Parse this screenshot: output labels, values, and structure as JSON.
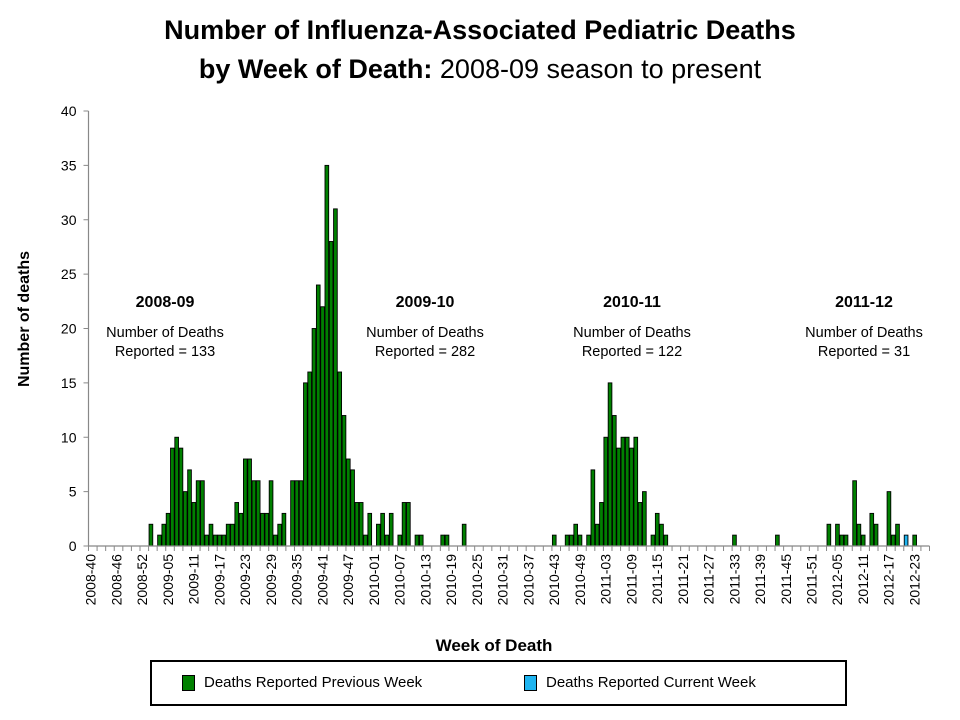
{
  "title": {
    "line1": "Number of Influenza-Associated Pediatric Deaths",
    "line2_bold": "by Week of Death:",
    "line2_rest": " 2008-09 season to present"
  },
  "annotations": [
    {
      "season": "2008-09",
      "line1": "Number of Deaths",
      "line2": "Reported = 133"
    },
    {
      "season": "2009-10",
      "line1": "Number of Deaths",
      "line2": "Reported = 282"
    },
    {
      "season": "2010-11",
      "line1": "Number of Deaths",
      "line2": "Reported = 122"
    },
    {
      "season": "2011-12",
      "line1": "Number of Deaths",
      "line2": "Reported = 31"
    }
  ],
  "legend": {
    "previous": "Deaths Reported Previous Week",
    "current": "Deaths Reported Current Week"
  },
  "colors": {
    "previous": "#008000",
    "current": "#1EB4F0",
    "outline": "#000000"
  },
  "chart_data": {
    "type": "bar",
    "stacked": true,
    "xlabel": "Week of Death",
    "ylabel": "Number of deaths",
    "ylim": [
      0,
      40
    ],
    "y_ticks": [
      0,
      5,
      10,
      15,
      20,
      25,
      30,
      35,
      40
    ],
    "grid": false,
    "legend_position": "bottom",
    "x_tick_labels": [
      "2008-40",
      "2008-46",
      "2008-52",
      "2009-05",
      "2009-11",
      "2009-17",
      "2009-23",
      "2009-29",
      "2009-35",
      "2009-41",
      "2009-47",
      "2010-01",
      "2010-07",
      "2010-13",
      "2010-19",
      "2010-25",
      "2010-31",
      "2010-37",
      "2010-43",
      "2010-49",
      "2011-03",
      "2011-09",
      "2011-15",
      "2011-21",
      "2011-27",
      "2011-33",
      "2011-39",
      "2011-45",
      "2011-51",
      "2012-05",
      "2012-11",
      "2012-17",
      "2012-23"
    ],
    "categories": [
      "2008-40",
      "2008-41",
      "2008-42",
      "2008-43",
      "2008-44",
      "2008-45",
      "2008-46",
      "2008-47",
      "2008-48",
      "2008-49",
      "2008-50",
      "2008-51",
      "2008-52",
      "2008-53",
      "2009-01",
      "2009-02",
      "2009-03",
      "2009-04",
      "2009-05",
      "2009-06",
      "2009-07",
      "2009-08",
      "2009-09",
      "2009-10",
      "2009-11",
      "2009-12",
      "2009-13",
      "2009-14",
      "2009-15",
      "2009-16",
      "2009-17",
      "2009-18",
      "2009-19",
      "2009-20",
      "2009-21",
      "2009-22",
      "2009-23",
      "2009-24",
      "2009-25",
      "2009-26",
      "2009-27",
      "2009-28",
      "2009-29",
      "2009-30",
      "2009-31",
      "2009-32",
      "2009-33",
      "2009-34",
      "2009-35",
      "2009-36",
      "2009-37",
      "2009-38",
      "2009-39",
      "2009-40",
      "2009-41",
      "2009-42",
      "2009-43",
      "2009-44",
      "2009-45",
      "2009-46",
      "2009-47",
      "2009-48",
      "2009-49",
      "2009-50",
      "2009-51",
      "2009-52",
      "2010-01",
      "2010-02",
      "2010-03",
      "2010-04",
      "2010-05",
      "2010-06",
      "2010-07",
      "2010-08",
      "2010-09",
      "2010-10",
      "2010-11",
      "2010-12",
      "2010-13",
      "2010-14",
      "2010-15",
      "2010-16",
      "2010-17",
      "2010-18",
      "2010-19",
      "2010-20",
      "2010-21",
      "2010-22",
      "2010-23",
      "2010-24",
      "2010-25",
      "2010-26",
      "2010-27",
      "2010-28",
      "2010-29",
      "2010-30",
      "2010-31",
      "2010-32",
      "2010-33",
      "2010-34",
      "2010-35",
      "2010-36",
      "2010-37",
      "2010-38",
      "2010-39",
      "2010-40",
      "2010-41",
      "2010-42",
      "2010-43",
      "2010-44",
      "2010-45",
      "2010-46",
      "2010-47",
      "2010-48",
      "2010-49",
      "2010-50",
      "2010-51",
      "2010-52",
      "2011-01",
      "2011-02",
      "2011-03",
      "2011-04",
      "2011-05",
      "2011-06",
      "2011-07",
      "2011-08",
      "2011-09",
      "2011-10",
      "2011-11",
      "2011-12",
      "2011-13",
      "2011-14",
      "2011-15",
      "2011-16",
      "2011-17",
      "2011-18",
      "2011-19",
      "2011-20",
      "2011-21",
      "2011-22",
      "2011-23",
      "2011-24",
      "2011-25",
      "2011-26",
      "2011-27",
      "2011-28",
      "2011-29",
      "2011-30",
      "2011-31",
      "2011-32",
      "2011-33",
      "2011-34",
      "2011-35",
      "2011-36",
      "2011-37",
      "2011-38",
      "2011-39",
      "2011-40",
      "2011-41",
      "2011-42",
      "2011-43",
      "2011-44",
      "2011-45",
      "2011-46",
      "2011-47",
      "2011-48",
      "2011-49",
      "2011-50",
      "2011-51",
      "2011-52",
      "2012-01",
      "2012-02",
      "2012-03",
      "2012-04",
      "2012-05",
      "2012-06",
      "2012-07",
      "2012-08",
      "2012-09",
      "2012-10",
      "2012-11",
      "2012-12",
      "2012-13",
      "2012-14",
      "2012-15",
      "2012-16",
      "2012-17",
      "2012-18",
      "2012-19",
      "2012-20",
      "2012-21",
      "2012-22",
      "2012-23",
      "2012-24",
      "2012-25",
      "2012-26"
    ],
    "series": [
      {
        "name": "Deaths Reported Previous Week",
        "values": [
          0,
          0,
          0,
          0,
          0,
          0,
          0,
          0,
          0,
          0,
          0,
          0,
          0,
          0,
          2,
          0,
          1,
          2,
          3,
          9,
          10,
          9,
          5,
          7,
          4,
          6,
          6,
          1,
          2,
          1,
          1,
          1,
          2,
          2,
          4,
          3,
          8,
          8,
          6,
          6,
          3,
          3,
          6,
          1,
          2,
          3,
          0,
          6,
          6,
          6,
          15,
          16,
          20,
          24,
          22,
          35,
          28,
          31,
          16,
          12,
          8,
          7,
          4,
          4,
          1,
          3,
          0,
          2,
          3,
          1,
          3,
          0,
          1,
          4,
          4,
          0,
          1,
          1,
          0,
          0,
          0,
          0,
          1,
          1,
          0,
          0,
          0,
          2,
          0,
          0,
          0,
          0,
          0,
          0,
          0,
          0,
          0,
          0,
          0,
          0,
          0,
          0,
          0,
          0,
          0,
          0,
          0,
          0,
          1,
          0,
          0,
          1,
          1,
          2,
          1,
          0,
          1,
          7,
          2,
          4,
          10,
          15,
          12,
          9,
          10,
          10,
          9,
          10,
          4,
          5,
          0,
          1,
          3,
          2,
          1,
          0,
          0,
          0,
          0,
          0,
          0,
          0,
          0,
          0,
          0,
          0,
          0,
          0,
          0,
          0,
          1,
          0,
          0,
          0,
          0,
          0,
          0,
          0,
          0,
          0,
          1,
          0,
          0,
          0,
          0,
          0,
          0,
          0,
          0,
          0,
          0,
          0,
          2,
          0,
          2,
          1,
          1,
          0,
          6,
          2,
          1,
          0,
          3,
          2,
          0,
          0,
          5,
          1,
          2,
          0,
          0,
          0,
          1,
          0,
          0,
          0
        ]
      },
      {
        "name": "Deaths Reported Current Week",
        "values": [
          0,
          0,
          0,
          0,
          0,
          0,
          0,
          0,
          0,
          0,
          0,
          0,
          0,
          0,
          0,
          0,
          0,
          0,
          0,
          0,
          0,
          0,
          0,
          0,
          0,
          0,
          0,
          0,
          0,
          0,
          0,
          0,
          0,
          0,
          0,
          0,
          0,
          0,
          0,
          0,
          0,
          0,
          0,
          0,
          0,
          0,
          0,
          0,
          0,
          0,
          0,
          0,
          0,
          0,
          0,
          0,
          0,
          0,
          0,
          0,
          0,
          0,
          0,
          0,
          0,
          0,
          0,
          0,
          0,
          0,
          0,
          0,
          0,
          0,
          0,
          0,
          0,
          0,
          0,
          0,
          0,
          0,
          0,
          0,
          0,
          0,
          0,
          0,
          0,
          0,
          0,
          0,
          0,
          0,
          0,
          0,
          0,
          0,
          0,
          0,
          0,
          0,
          0,
          0,
          0,
          0,
          0,
          0,
          0,
          0,
          0,
          0,
          0,
          0,
          0,
          0,
          0,
          0,
          0,
          0,
          0,
          0,
          0,
          0,
          0,
          0,
          0,
          0,
          0,
          0,
          0,
          0,
          0,
          0,
          0,
          0,
          0,
          0,
          0,
          0,
          0,
          0,
          0,
          0,
          0,
          0,
          0,
          0,
          0,
          0,
          0,
          0,
          0,
          0,
          0,
          0,
          0,
          0,
          0,
          0,
          0,
          0,
          0,
          0,
          0,
          0,
          0,
          0,
          0,
          0,
          0,
          0,
          0,
          0,
          0,
          0,
          0,
          0,
          0,
          0,
          0,
          0,
          0,
          0,
          0,
          0,
          0,
          0,
          0,
          0,
          1,
          0,
          0,
          0,
          0,
          0
        ]
      }
    ]
  }
}
